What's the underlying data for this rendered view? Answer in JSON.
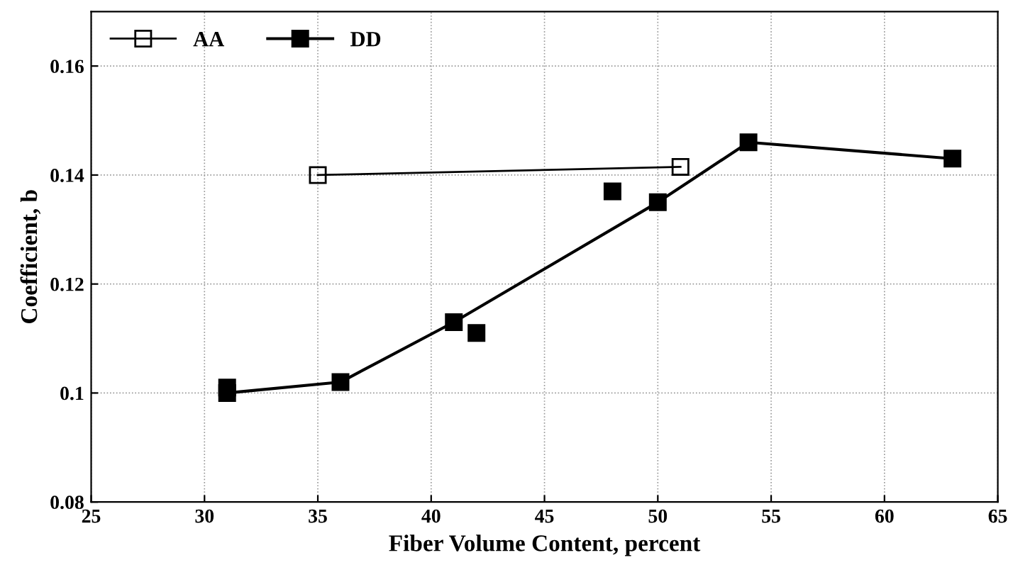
{
  "chart_data": {
    "type": "line",
    "xlabel": "Fiber Volume Content, percent",
    "ylabel": "Coefficient, b",
    "xlim": [
      25,
      65
    ],
    "xticks": [
      25,
      30,
      35,
      40,
      45,
      50,
      55,
      60,
      65
    ],
    "ylim": [
      0.08,
      0.17
    ],
    "yticks": [
      {
        "value": 0.08,
        "label": "0.08"
      },
      0.1,
      0.12,
      0.14,
      0.16
    ],
    "grid": true,
    "legend": "top left",
    "series": [
      {
        "name": "AA",
        "color": "#000000",
        "x": [
          35,
          51
        ],
        "values": [
          0.14,
          0.1415
        ],
        "marker": "square"
      },
      {
        "name": "DD",
        "color": "#000000",
        "x": [
          31,
          36,
          41,
          50,
          54,
          63
        ],
        "values": [
          0.1,
          0.102,
          0.113,
          0.135,
          0.146,
          0.143
        ],
        "marker": "square"
      },
      {
        "type": "scatter",
        "color": "#000000",
        "x": [
          31,
          42,
          48
        ],
        "values": [
          0.101,
          0.111,
          0.137
        ],
        "marker": "square"
      }
    ]
  }
}
